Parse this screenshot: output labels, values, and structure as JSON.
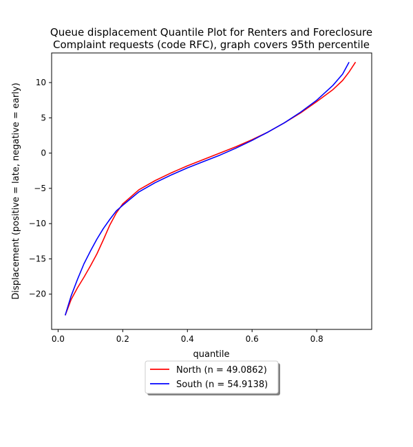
{
  "chart_data": {
    "type": "line",
    "title_lines": [
      "Queue displacement Quantile Plot for Renters and Foreclosure",
      "Complaint  requests (code RFC), graph covers 95th percentile"
    ],
    "xlabel": "quantile",
    "ylabel": "Displacement (positive = late, negative = early)",
    "xlim": [
      -0.02,
      0.97
    ],
    "ylim": [
      -25,
      14.2
    ],
    "xticks": [
      "0.0",
      "0.2",
      "0.4",
      "0.6",
      "0.8"
    ],
    "yticks": [
      "−20",
      "−15",
      "−10",
      "−5",
      "0",
      "5",
      "10"
    ],
    "grid": false,
    "legend_position": "below",
    "series": [
      {
        "name": "North (n = 49.0862)",
        "color": "#ff0000",
        "points": [
          [
            0.022,
            -23.0
          ],
          [
            0.04,
            -20.8
          ],
          [
            0.06,
            -19.1
          ],
          [
            0.08,
            -17.6
          ],
          [
            0.1,
            -16.0
          ],
          [
            0.12,
            -14.3
          ],
          [
            0.14,
            -12.3
          ],
          [
            0.16,
            -10.2
          ],
          [
            0.18,
            -8.5
          ],
          [
            0.2,
            -7.2
          ],
          [
            0.25,
            -5.2
          ],
          [
            0.3,
            -3.9
          ],
          [
            0.35,
            -2.8
          ],
          [
            0.4,
            -1.8
          ],
          [
            0.45,
            -0.9
          ],
          [
            0.5,
            0.0
          ],
          [
            0.55,
            0.9
          ],
          [
            0.6,
            1.9
          ],
          [
            0.65,
            3.0
          ],
          [
            0.7,
            4.3
          ],
          [
            0.75,
            5.7
          ],
          [
            0.8,
            7.3
          ],
          [
            0.85,
            9.0
          ],
          [
            0.88,
            10.3
          ],
          [
            0.9,
            11.5
          ],
          [
            0.92,
            12.9
          ]
        ]
      },
      {
        "name": "South (n = 54.9138)",
        "color": "#0000ff",
        "points": [
          [
            0.022,
            -23.0
          ],
          [
            0.04,
            -20.3
          ],
          [
            0.06,
            -17.9
          ],
          [
            0.08,
            -15.7
          ],
          [
            0.1,
            -13.9
          ],
          [
            0.12,
            -12.2
          ],
          [
            0.14,
            -10.7
          ],
          [
            0.16,
            -9.4
          ],
          [
            0.18,
            -8.2
          ],
          [
            0.2,
            -7.4
          ],
          [
            0.25,
            -5.5
          ],
          [
            0.3,
            -4.2
          ],
          [
            0.35,
            -3.1
          ],
          [
            0.4,
            -2.1
          ],
          [
            0.45,
            -1.2
          ],
          [
            0.5,
            -0.3
          ],
          [
            0.55,
            0.7
          ],
          [
            0.6,
            1.8
          ],
          [
            0.65,
            3.0
          ],
          [
            0.7,
            4.3
          ],
          [
            0.75,
            5.8
          ],
          [
            0.8,
            7.5
          ],
          [
            0.85,
            9.6
          ],
          [
            0.88,
            11.2
          ],
          [
            0.9,
            12.9
          ]
        ]
      }
    ]
  }
}
